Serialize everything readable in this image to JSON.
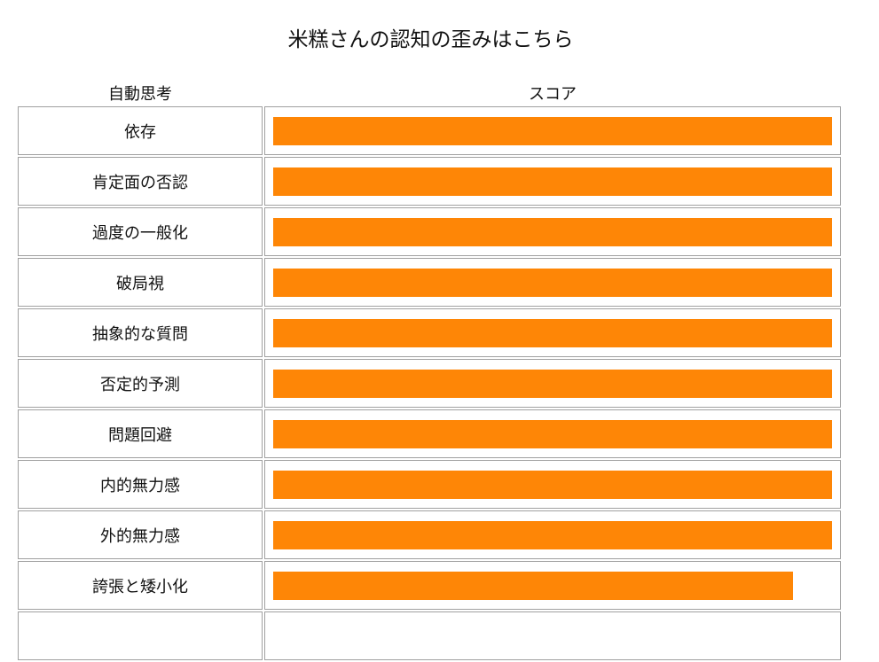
{
  "page_title": "米糕さんの認知の歪みはこちら",
  "table": {
    "header_thought": "自動思考",
    "header_score": "スコア",
    "bar_color": "#fe8606",
    "rows": [
      {
        "label": "依存",
        "score_fraction": 1.0
      },
      {
        "label": "肯定面の否認",
        "score_fraction": 1.0
      },
      {
        "label": "過度の一般化",
        "score_fraction": 1.0
      },
      {
        "label": "破局視",
        "score_fraction": 1.0
      },
      {
        "label": "抽象的な質問",
        "score_fraction": 1.0
      },
      {
        "label": "否定的予測",
        "score_fraction": 1.0
      },
      {
        "label": "問題回避",
        "score_fraction": 1.0
      },
      {
        "label": "内的無力感",
        "score_fraction": 1.0
      },
      {
        "label": "外的無力感",
        "score_fraction": 1.0
      },
      {
        "label": "誇張と矮小化",
        "score_fraction": 0.93
      },
      {
        "label": "",
        "score_fraction": 0.0
      }
    ]
  }
}
